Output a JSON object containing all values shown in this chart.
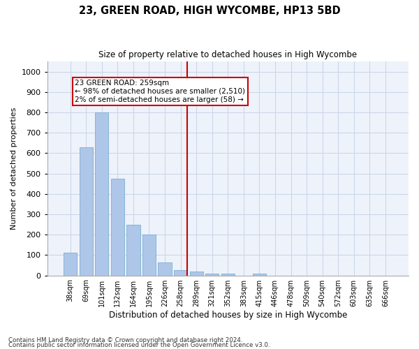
{
  "title": "23, GREEN ROAD, HIGH WYCOMBE, HP13 5BD",
  "subtitle": "Size of property relative to detached houses in High Wycombe",
  "xlabel": "Distribution of detached houses by size in High Wycombe",
  "ylabel": "Number of detached properties",
  "footnote1": "Contains HM Land Registry data © Crown copyright and database right 2024.",
  "footnote2": "Contains public sector information licensed under the Open Government Licence v3.0.",
  "bar_labels": [
    "38sqm",
    "69sqm",
    "101sqm",
    "132sqm",
    "164sqm",
    "195sqm",
    "226sqm",
    "258sqm",
    "289sqm",
    "321sqm",
    "352sqm",
    "383sqm",
    "415sqm",
    "446sqm",
    "478sqm",
    "509sqm",
    "540sqm",
    "572sqm",
    "603sqm",
    "635sqm",
    "666sqm"
  ],
  "bar_values": [
    110,
    628,
    800,
    475,
    248,
    202,
    62,
    27,
    18,
    10,
    8,
    0,
    10,
    0,
    0,
    0,
    0,
    0,
    0,
    0,
    0
  ],
  "bar_color": "#aec6e8",
  "bar_edge_color": "#7aafd4",
  "grid_color": "#c8d4e8",
  "bg_color": "#eef2fa",
  "property_line_x": 7.42,
  "annotation_text1": "23 GREEN ROAD: 259sqm",
  "annotation_text2": "← 98% of detached houses are smaller (2,510)",
  "annotation_text3": "2% of semi-detached houses are larger (58) →",
  "annotation_box_color": "#ffffff",
  "annotation_border_color": "#cc0000",
  "vline_color": "#cc0000",
  "ylim": [
    0,
    1050
  ],
  "yticks": [
    0,
    100,
    200,
    300,
    400,
    500,
    600,
    700,
    800,
    900,
    1000
  ]
}
